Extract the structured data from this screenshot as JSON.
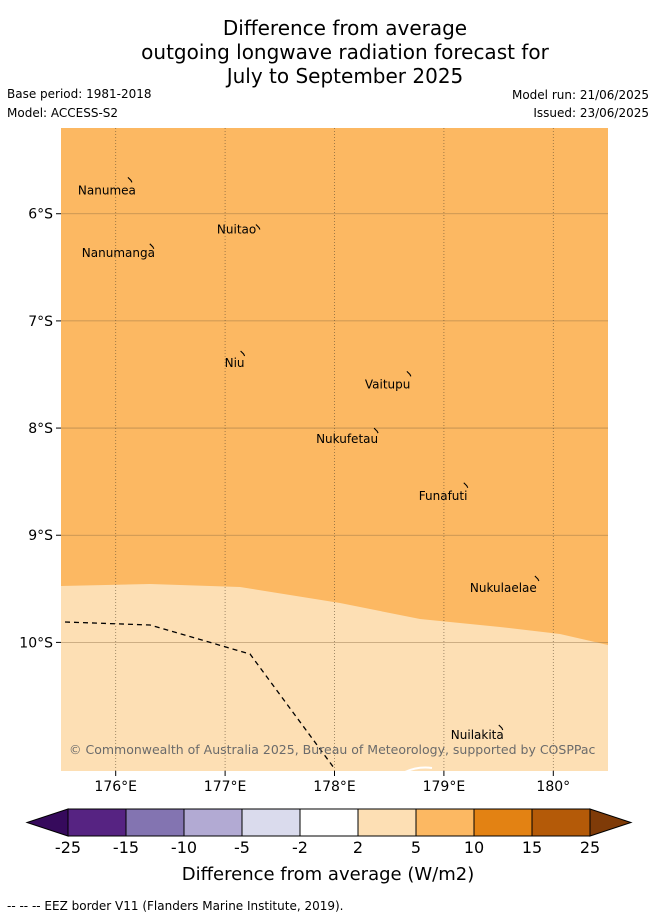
{
  "title": {
    "line1": "Difference from average",
    "line2": "outgoing longwave radiation forecast for",
    "line3": "July to September 2025"
  },
  "meta": {
    "base_period": "Base period: 1981-2018",
    "model": "Model: ACCESS-S2",
    "model_run": "Model run: 21/06/2025",
    "issued": "Issued: 23/06/2025"
  },
  "map": {
    "lon_range": [
      175.5,
      180.5
    ],
    "lat_range": [
      -11.2,
      -5.2
    ],
    "lon_ticks": [
      {
        "value": 176,
        "label": "176°E"
      },
      {
        "value": 177,
        "label": "177°E"
      },
      {
        "value": 178,
        "label": "178°E"
      },
      {
        "value": 179,
        "label": "179°E"
      },
      {
        "value": 180,
        "label": "180°"
      }
    ],
    "lat_ticks": [
      {
        "value": -6,
        "label": "6°S"
      },
      {
        "value": -7,
        "label": "7°S"
      },
      {
        "value": -8,
        "label": "8°S"
      },
      {
        "value": -9,
        "label": "9°S"
      },
      {
        "value": -10,
        "label": "10°S"
      }
    ],
    "fill_upper_color": "#fcb862",
    "fill_lower_color": "#fddfb4",
    "grid_color": "#000000",
    "eez_color": "#000000",
    "islands": [
      {
        "name": "Nanumea",
        "lon": 176.13,
        "lat": -5.67
      },
      {
        "name": "Nuitao",
        "lon": 177.3,
        "lat": -6.11
      },
      {
        "name": "Nanumanga",
        "lon": 176.33,
        "lat": -6.29
      },
      {
        "name": "Niu",
        "lon": 177.16,
        "lat": -7.29
      },
      {
        "name": "Vaitupu",
        "lon": 178.68,
        "lat": -7.48
      },
      {
        "name": "Nukufetau",
        "lon": 178.38,
        "lat": -8.01
      },
      {
        "name": "Funafuti",
        "lon": 179.2,
        "lat": -8.52
      },
      {
        "name": "Nukulaelae",
        "lon": 179.85,
        "lat": -9.39
      },
      {
        "name": "Nuilakita",
        "lon": 179.52,
        "lat": -10.78
      }
    ],
    "copyright": "© Commonwealth of Australia 2025, Bureau of Meteorology, supported by COSPPac"
  },
  "colorbar": {
    "boundaries": [
      "-25",
      "-15",
      "-10",
      "-5",
      "-2",
      "2",
      "5",
      "10",
      "15",
      "25"
    ],
    "colors": [
      "#562382",
      "#8374b1",
      "#b2aad3",
      "#dadbed",
      "#ffffff",
      "#fddfb4",
      "#fcb862",
      "#e38213",
      "#b45a08"
    ],
    "under_color": "#360a5c",
    "over_color": "#7f3b08",
    "label": "Difference from average (W/m2)"
  },
  "footer": {
    "legend_text": "-- -- -- EEZ border V11 (Flanders Marine Institute, 2019)."
  }
}
